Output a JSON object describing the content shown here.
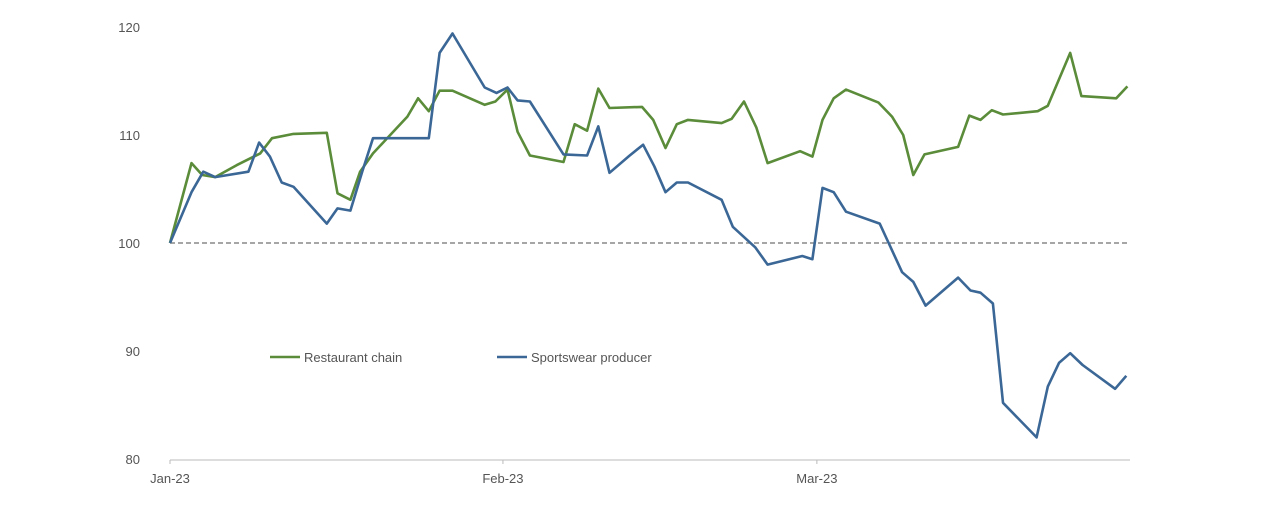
{
  "chart_data": {
    "type": "line",
    "title": "",
    "xlabel": "",
    "ylabel": "",
    "x_units": "days since 1 Jan 2023",
    "ylim": [
      80,
      120
    ],
    "yticks": [
      80,
      90,
      100,
      110,
      120
    ],
    "xticks": [
      {
        "label": "Jan-23",
        "day": 0
      },
      {
        "label": "Feb-23",
        "day": 31
      },
      {
        "label": "Mar-23",
        "day": 59
      }
    ],
    "reference_line": 100,
    "legend_position": "bottom-left-inside",
    "series": [
      {
        "name": "Restaurant chain",
        "color": "#5b8c3a",
        "points": [
          [
            0,
            100
          ],
          [
            2,
            107.4
          ],
          [
            3,
            106.3
          ],
          [
            4.2,
            106.1
          ],
          [
            6.2,
            107.2
          ],
          [
            8.4,
            108.3
          ],
          [
            9.5,
            109.7
          ],
          [
            11.5,
            110.1
          ],
          [
            14.6,
            110.2
          ],
          [
            15.6,
            104.6
          ],
          [
            16.8,
            104
          ],
          [
            17.7,
            106.6
          ],
          [
            18.9,
            108.3
          ],
          [
            22.1,
            111.7
          ],
          [
            23.1,
            113.4
          ],
          [
            24.1,
            112.2
          ],
          [
            25.1,
            114.1
          ],
          [
            26.3,
            114.1
          ],
          [
            29.3,
            112.8
          ],
          [
            30.3,
            113.1
          ],
          [
            31.4,
            114.2
          ],
          [
            32.3,
            110.3
          ],
          [
            33.4,
            108.1
          ],
          [
            36.4,
            107.5
          ],
          [
            37.4,
            111
          ],
          [
            38.5,
            110.4
          ],
          [
            39.5,
            114.3
          ],
          [
            40.5,
            112.5
          ],
          [
            43.4,
            112.6
          ],
          [
            44.4,
            111.4
          ],
          [
            45.5,
            108.8
          ],
          [
            46.5,
            111
          ],
          [
            47.5,
            111.4
          ],
          [
            50.5,
            111.1
          ],
          [
            51.4,
            111.5
          ],
          [
            52.5,
            113.1
          ],
          [
            53.6,
            110.7
          ],
          [
            54.6,
            107.4
          ],
          [
            57.5,
            108.5
          ],
          [
            58.6,
            108
          ],
          [
            59.5,
            111.4
          ],
          [
            60.5,
            113.4
          ],
          [
            61.6,
            114.2
          ],
          [
            64.5,
            113
          ],
          [
            65.7,
            111.7
          ],
          [
            66.7,
            110
          ],
          [
            67.6,
            106.3
          ],
          [
            68.6,
            108.2
          ],
          [
            71.6,
            108.9
          ],
          [
            72.6,
            111.8
          ],
          [
            73.6,
            111.4
          ],
          [
            74.6,
            112.3
          ],
          [
            75.6,
            111.9
          ],
          [
            78.7,
            112.2
          ],
          [
            79.6,
            112.7
          ],
          [
            81.6,
            117.6
          ],
          [
            82.6,
            113.6
          ],
          [
            85.7,
            113.4
          ],
          [
            86.7,
            114.5
          ]
        ]
      },
      {
        "name": "Sportswear producer",
        "color": "#3b6796",
        "points": [
          [
            0,
            100
          ],
          [
            2,
            104.7
          ],
          [
            3.1,
            106.6
          ],
          [
            4.2,
            106.1
          ],
          [
            7.3,
            106.6
          ],
          [
            8.3,
            109.3
          ],
          [
            9.3,
            108
          ],
          [
            10.4,
            105.6
          ],
          [
            11.5,
            105.2
          ],
          [
            14.6,
            101.8
          ],
          [
            15.6,
            103.2
          ],
          [
            16.8,
            103
          ],
          [
            17.9,
            106.6
          ],
          [
            18.9,
            109.7
          ],
          [
            24.1,
            109.7
          ],
          [
            25.1,
            117.6
          ],
          [
            26.3,
            119.4
          ],
          [
            29.3,
            114.4
          ],
          [
            30.4,
            113.9
          ],
          [
            31.4,
            114.4
          ],
          [
            32.3,
            113.2
          ],
          [
            33.4,
            113.1
          ],
          [
            36.4,
            108.2
          ],
          [
            38.5,
            108.1
          ],
          [
            39.5,
            110.8
          ],
          [
            40.5,
            106.5
          ],
          [
            42.3,
            108.1
          ],
          [
            43.5,
            109.1
          ],
          [
            44.5,
            107.1
          ],
          [
            45.5,
            104.7
          ],
          [
            46.5,
            105.6
          ],
          [
            47.5,
            105.6
          ],
          [
            50.5,
            104
          ],
          [
            51.5,
            101.5
          ],
          [
            53.5,
            99.6
          ],
          [
            54.6,
            98
          ],
          [
            57.7,
            98.8
          ],
          [
            58.6,
            98.5
          ],
          [
            59.5,
            105.1
          ],
          [
            60.5,
            104.7
          ],
          [
            61.6,
            102.9
          ],
          [
            64.6,
            101.8
          ],
          [
            66.6,
            97.3
          ],
          [
            67.6,
            96.4
          ],
          [
            68.7,
            94.2
          ],
          [
            71.6,
            96.8
          ],
          [
            72.7,
            95.6
          ],
          [
            73.6,
            95.4
          ],
          [
            74.7,
            94.4
          ],
          [
            75.6,
            85.2
          ],
          [
            78.6,
            82
          ],
          [
            79.6,
            86.7
          ],
          [
            80.6,
            88.9
          ],
          [
            81.6,
            89.8
          ],
          [
            82.7,
            88.7
          ],
          [
            85.6,
            86.5
          ],
          [
            86.6,
            87.7
          ]
        ]
      }
    ]
  }
}
